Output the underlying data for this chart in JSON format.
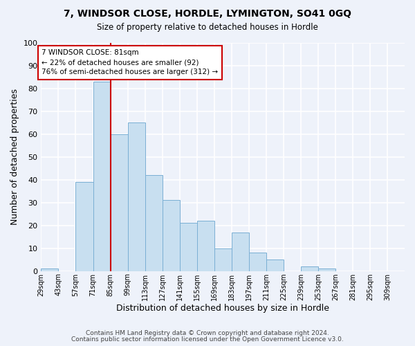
{
  "title": "7, WINDSOR CLOSE, HORDLE, LYMINGTON, SO41 0GQ",
  "subtitle": "Size of property relative to detached houses in Hordle",
  "xlabel": "Distribution of detached houses by size in Hordle",
  "ylabel": "Number of detached properties",
  "bin_labels": [
    "29sqm",
    "43sqm",
    "57sqm",
    "71sqm",
    "85sqm",
    "99sqm",
    "113sqm",
    "127sqm",
    "141sqm",
    "155sqm",
    "169sqm",
    "183sqm",
    "197sqm",
    "211sqm",
    "225sqm",
    "239sqm",
    "253sqm",
    "267sqm",
    "281sqm",
    "295sqm",
    "309sqm"
  ],
  "bin_edges": [
    29,
    43,
    57,
    71,
    85,
    99,
    113,
    127,
    141,
    155,
    169,
    183,
    197,
    211,
    225,
    239,
    253,
    267,
    281,
    295,
    309
  ],
  "bar_values": [
    1,
    0,
    39,
    83,
    60,
    65,
    42,
    31,
    21,
    22,
    10,
    17,
    8,
    5,
    0,
    2,
    1,
    0,
    0,
    0
  ],
  "bar_color": "#c8dff0",
  "bar_edge_color": "#7aafd4",
  "property_line_x": 85,
  "annotation_text": "7 WINDSOR CLOSE: 81sqm\n← 22% of detached houses are smaller (92)\n76% of semi-detached houses are larger (312) →",
  "annotation_box_color": "#ffffff",
  "annotation_box_edge_color": "#cc0000",
  "property_line_color": "#cc0000",
  "ylim": [
    0,
    100
  ],
  "yticks": [
    0,
    10,
    20,
    30,
    40,
    50,
    60,
    70,
    80,
    90,
    100
  ],
  "background_color": "#eef2fa",
  "grid_color": "#ffffff",
  "footer_line1": "Contains HM Land Registry data © Crown copyright and database right 2024.",
  "footer_line2": "Contains public sector information licensed under the Open Government Licence v3.0."
}
